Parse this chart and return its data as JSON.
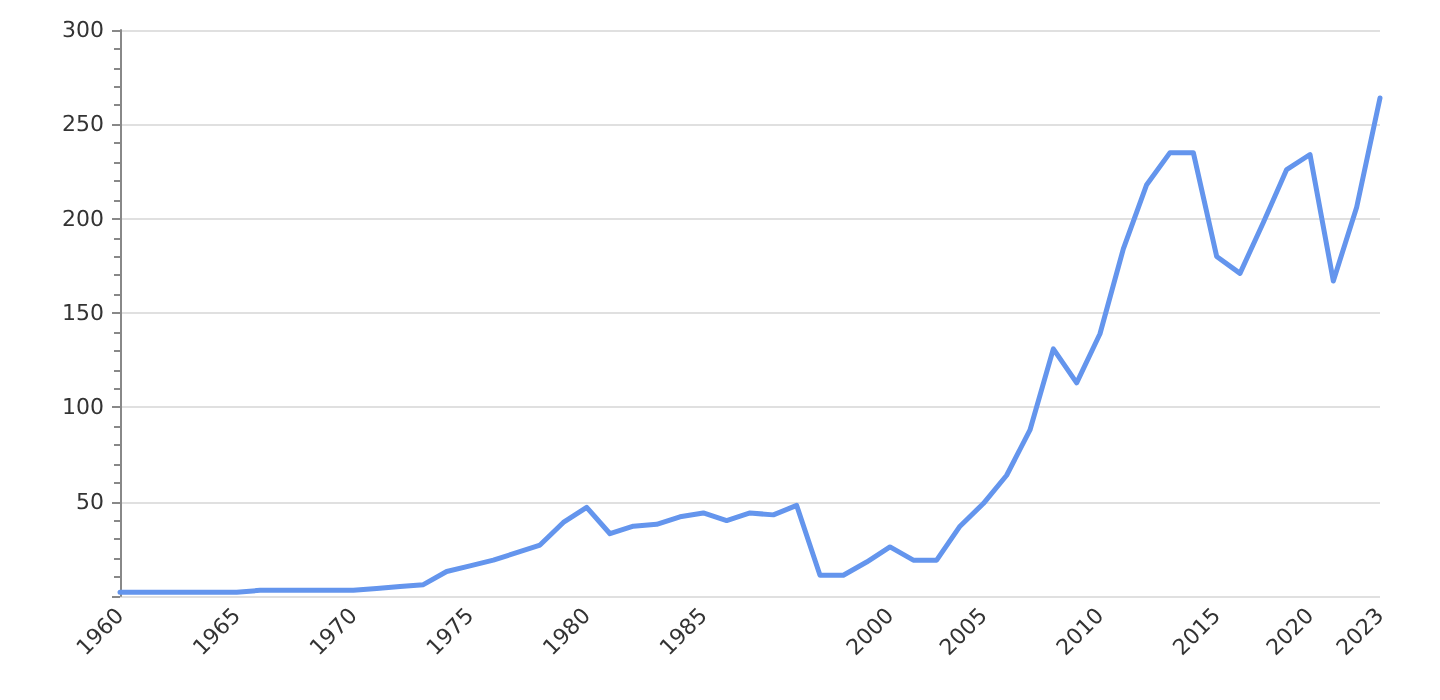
{
  "chart_data": {
    "type": "line",
    "categories": [
      "1960",
      null,
      null,
      null,
      null,
      "1965",
      null,
      null,
      null,
      null,
      "1970",
      null,
      null,
      null,
      null,
      "1975",
      null,
      null,
      null,
      null,
      "1980",
      null,
      null,
      null,
      null,
      "1985",
      null,
      null,
      null,
      null,
      null,
      null,
      null,
      "2000",
      null,
      null,
      null,
      "2005",
      null,
      null,
      null,
      null,
      "2010",
      null,
      null,
      null,
      null,
      "2015",
      null,
      null,
      null,
      "2020",
      null,
      null,
      "2023"
    ],
    "series": [
      {
        "color": "#6495ed",
        "values": [
          2,
          2,
          2,
          2,
          2,
          2,
          3,
          3,
          3,
          3,
          3,
          4,
          5,
          6,
          13,
          16,
          19,
          23,
          27,
          39,
          47,
          33,
          37,
          38,
          42,
          44,
          40,
          44,
          43,
          48,
          11,
          11,
          18,
          26,
          19,
          19,
          37,
          49,
          64,
          88,
          131,
          113,
          139,
          184,
          218,
          235,
          235,
          180,
          171,
          198,
          226,
          234,
          167,
          206,
          264
        ]
      }
    ],
    "ylim": [
      0,
      300
    ],
    "yticks": [
      {
        "value": 0,
        "label": null
      },
      50,
      100,
      150,
      200,
      250,
      300
    ],
    "grid": "y",
    "marker": "none",
    "line_style": "solid"
  }
}
